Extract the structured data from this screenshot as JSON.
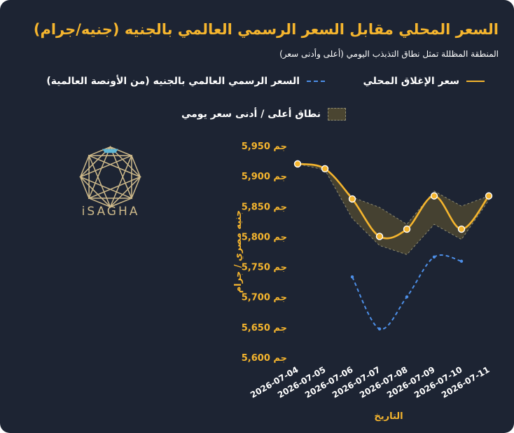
{
  "chart_data": {
    "type": "line",
    "title": "السعر المحلي مقابل السعر الرسمي العالمي بالجنيه (جنيه/جرام)",
    "subtitle": "المنطقة المظللة تمثل نطاق التذبذب اليومي (أعلى وأدنى سعر)",
    "xlabel": "التاريخ",
    "ylabel": "جنيه مصري / جرام",
    "x": [
      "2026-07-04",
      "2026-07-05",
      "2026-07-06",
      "2026-07-07",
      "2026-07-08",
      "2026-07-09",
      "2026-07-10",
      "2026-07-11"
    ],
    "ylim": [
      5600,
      5950
    ],
    "yticks": [
      5600,
      5650,
      5700,
      5750,
      5800,
      5850,
      5900,
      5950
    ],
    "ytick_labels": [
      "5,600 جم",
      "5,650 جم",
      "5,700 جم",
      "5,750 جم",
      "5,800 جم",
      "5,850 جم",
      "5,900 جم",
      "5,950 جم"
    ],
    "series": [
      {
        "name": "سعر الإغلاق المحلي",
        "style": "solid",
        "color": "#f5b52e",
        "values": [
          5920,
          5912,
          5862,
          5800,
          5812,
          5867,
          5812,
          5867
        ]
      },
      {
        "name": "السعر الرسمي العالمي بالجنيه (من الأونصة العالمية)",
        "style": "dashed",
        "color": "#4d8fe8",
        "values": [
          null,
          null,
          5733,
          5647,
          5700,
          5766,
          5759,
          null
        ]
      }
    ],
    "band": {
      "name": "نطاق أعلى / أدنى سعر يومي",
      "color": "#4a4531",
      "high": [
        5922,
        5915,
        5865,
        5848,
        5820,
        5875,
        5850,
        5867
      ],
      "low": [
        5920,
        5910,
        5830,
        5785,
        5770,
        5820,
        5795,
        5860
      ]
    },
    "grid": false,
    "legend_position": "top"
  },
  "logo": {
    "text": "iSAGHA"
  },
  "colors": {
    "background": "#1d2433",
    "accent": "#f5b52e",
    "secondary": "#4d8fe8"
  }
}
